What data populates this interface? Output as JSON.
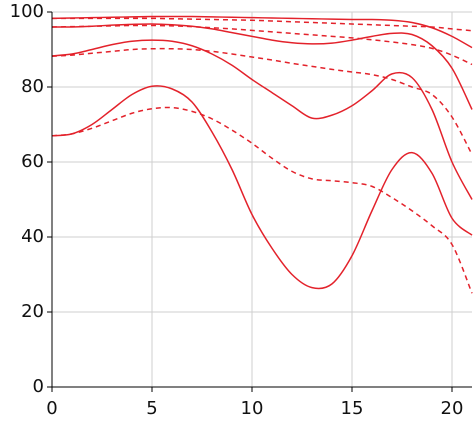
{
  "chart_data": {
    "type": "line",
    "x": [
      0,
      1,
      2,
      3,
      4,
      5,
      6,
      7,
      8,
      9,
      10,
      11,
      12,
      13,
      14,
      15,
      16,
      17,
      18,
      19,
      20,
      21
    ],
    "xlim": [
      0,
      21
    ],
    "xticks": [
      0,
      5,
      10,
      15,
      20
    ],
    "ylim": [
      0,
      100
    ],
    "yticks": [
      0,
      20,
      40,
      60,
      80,
      100
    ],
    "grid": true,
    "series": [
      {
        "color": "#e3222b",
        "dashed": false,
        "values": [
          98.3,
          98.4,
          98.5,
          98.6,
          98.7,
          98.8,
          98.8,
          98.8,
          98.7,
          98.6,
          98.5,
          98.4,
          98.3,
          98.2,
          98.1,
          98.0,
          98.0,
          97.8,
          97.2,
          95.8,
          93.5,
          90.5
        ]
      },
      {
        "color": "#e3222b",
        "dashed": true,
        "values": [
          98.3,
          98.3,
          98.3,
          98.3,
          98.3,
          98.3,
          98.2,
          98.1,
          98.0,
          97.9,
          97.8,
          97.6,
          97.4,
          97.2,
          97.0,
          96.8,
          96.6,
          96.4,
          96.2,
          96.0,
          95.5,
          95.0
        ]
      },
      {
        "color": "#e3222b",
        "dashed": false,
        "values": [
          96.0,
          96.0,
          96.2,
          96.5,
          96.7,
          96.8,
          96.6,
          96.2,
          95.5,
          94.5,
          93.5,
          92.5,
          91.8,
          91.5,
          91.7,
          92.5,
          93.5,
          94.3,
          94.0,
          91.0,
          85.0,
          74.0
        ]
      },
      {
        "color": "#e3222b",
        "dashed": true,
        "values": [
          96.0,
          96.1,
          96.2,
          96.3,
          96.4,
          96.4,
          96.3,
          96.1,
          95.8,
          95.5,
          95.1,
          94.7,
          94.3,
          93.9,
          93.5,
          93.1,
          92.6,
          92.0,
          91.3,
          90.3,
          88.5,
          86.0
        ]
      },
      {
        "color": "#e3222b",
        "dashed": false,
        "values": [
          88.3,
          88.8,
          90.0,
          91.3,
          92.2,
          92.5,
          92.2,
          91.0,
          88.8,
          85.8,
          82.0,
          78.5,
          75.0,
          71.7,
          72.5,
          75.0,
          79.0,
          83.5,
          82.5,
          74.0,
          60.0,
          50.0
        ]
      },
      {
        "color": "#e3222b",
        "dashed": true,
        "values": [
          88.2,
          88.5,
          89.0,
          89.5,
          90.0,
          90.2,
          90.2,
          90.0,
          89.5,
          88.8,
          88.0,
          87.2,
          86.3,
          85.5,
          84.7,
          84.0,
          83.3,
          82.0,
          80.0,
          78.0,
          72.0,
          62.0
        ]
      },
      {
        "color": "#e3222b",
        "dashed": false,
        "values": [
          67.0,
          67.5,
          70.0,
          74.0,
          78.0,
          80.2,
          79.5,
          76.0,
          68.0,
          58.0,
          46.0,
          37.0,
          30.0,
          26.5,
          27.5,
          35.0,
          47.0,
          58.0,
          62.5,
          57.0,
          45.0,
          40.5
        ]
      },
      {
        "color": "#e3222b",
        "dashed": true,
        "values": [
          67.0,
          67.5,
          69.0,
          71.0,
          73.0,
          74.2,
          74.5,
          73.5,
          71.5,
          68.5,
          65.0,
          61.0,
          57.5,
          55.5,
          55.0,
          54.5,
          53.5,
          50.5,
          47.0,
          43.0,
          38.0,
          25.0
        ]
      }
    ]
  }
}
